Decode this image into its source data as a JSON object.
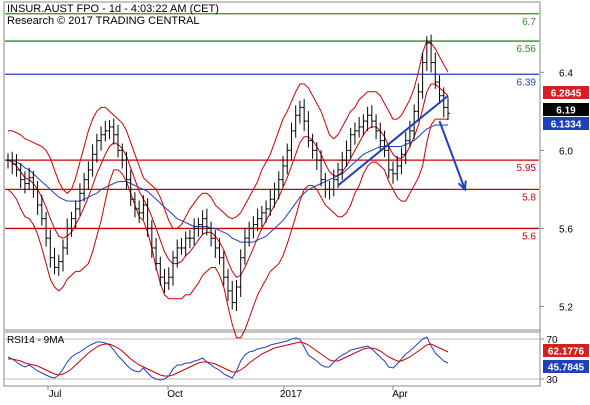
{
  "header": {
    "line1": "INSUR.AUST FPO - 1d - 4:03:22 AM (CET)",
    "line2": "Research © 2017 TRADING CENTRAL"
  },
  "chart_data": [
    {
      "type": "candlestick",
      "title": "",
      "ylim": [
        5.1,
        6.75
      ],
      "y_ticks": [
        "6.4",
        "6.0",
        "5.6",
        "5.2"
      ],
      "x_ticks": [
        "Jul",
        "Oct",
        "2017",
        "Apr"
      ],
      "horizontal_levels": [
        {
          "value": 6.7,
          "label": "6.7",
          "color": "#2e8b2e"
        },
        {
          "value": 6.56,
          "label": "6.56",
          "color": "#2e8b2e"
        },
        {
          "value": 6.39,
          "label": "6.39",
          "color": "#1f3fbf"
        },
        {
          "value": 5.95,
          "label": "5.95",
          "color": "#cc0000"
        },
        {
          "value": 5.8,
          "label": "5.8",
          "color": "#cc0000"
        },
        {
          "value": 5.6,
          "label": "5.6",
          "color": "#cc0000"
        }
      ],
      "value_badges": [
        {
          "value": 6.2845,
          "label": "6.2845",
          "bg": "#d42020"
        },
        {
          "value": 6.19,
          "label": "6.19",
          "bg": "#000000"
        },
        {
          "value": 6.1334,
          "label": "6.1334",
          "bg": "#1f3fbf"
        }
      ],
      "price": [
        5.95,
        5.93,
        5.9,
        5.85,
        5.83,
        5.86,
        5.8,
        5.72,
        5.65,
        5.55,
        5.45,
        5.4,
        5.43,
        5.5,
        5.6,
        5.65,
        5.7,
        5.78,
        5.85,
        5.9,
        5.98,
        6.05,
        6.08,
        6.1,
        6.12,
        6.08,
        6.0,
        5.95,
        5.85,
        5.75,
        5.7,
        5.68,
        5.72,
        5.6,
        5.5,
        5.42,
        5.35,
        5.32,
        5.35,
        5.45,
        5.5,
        5.5,
        5.55,
        5.55,
        5.6,
        5.62,
        5.65,
        5.6,
        5.55,
        5.5,
        5.45,
        5.35,
        5.28,
        5.22,
        5.3,
        5.45,
        5.55,
        5.6,
        5.62,
        5.65,
        5.68,
        5.7,
        5.75,
        5.8,
        5.85,
        5.92,
        6.0,
        6.1,
        6.18,
        6.22,
        6.15,
        6.05,
        6.0,
        5.95,
        5.85,
        5.8,
        5.8,
        5.85,
        5.9,
        5.95,
        6.0,
        6.08,
        6.1,
        6.12,
        6.15,
        6.18,
        6.15,
        6.1,
        6.05,
        6.0,
        5.9,
        5.88,
        5.92,
        5.98,
        6.05,
        6.1,
        6.2,
        6.3,
        6.45,
        6.55,
        6.45,
        6.35,
        6.28,
        6.22,
        6.19
      ],
      "series": [
        {
          "name": "",
          "color": "#cc0000",
          "values": [
            5.95,
            5.94,
            5.92,
            5.89,
            5.86,
            5.85,
            5.83,
            5.8,
            5.76,
            5.71,
            5.65,
            5.6,
            5.56,
            5.55,
            5.56,
            5.58,
            5.62,
            5.66,
            5.71,
            5.76,
            5.82,
            5.88,
            5.93,
            5.98,
            6.02,
            6.04,
            6.03,
            6.01,
            5.97,
            5.91,
            5.85,
            5.79,
            5.75,
            5.71,
            5.66,
            5.6,
            5.54,
            5.48,
            5.44,
            5.42,
            5.42,
            5.43,
            5.46,
            5.48,
            5.51,
            5.54,
            5.57,
            5.58,
            5.58,
            5.56,
            5.53,
            5.49,
            5.43,
            5.38,
            5.35,
            5.36,
            5.4,
            5.45,
            5.5,
            5.55,
            5.6,
            5.64,
            5.68,
            5.72,
            5.76,
            5.81,
            5.86,
            5.92,
            5.98,
            6.04,
            6.07,
            6.07,
            6.05,
            6.02,
            5.98,
            5.93,
            5.89,
            5.87,
            5.87,
            5.89,
            5.92,
            5.96,
            6.0,
            6.04,
            6.08,
            6.11,
            6.12,
            6.12,
            6.1,
            6.07,
            6.02,
            5.98,
            5.96,
            5.96,
            5.98,
            6.02,
            6.07,
            6.13,
            6.21,
            6.3,
            6.34,
            6.34,
            6.32,
            6.3,
            6.28
          ]
        },
        {
          "name": "",
          "color": "#1f3fbf",
          "values": [
            5.95,
            5.95,
            5.94,
            5.93,
            5.91,
            5.9,
            5.88,
            5.86,
            5.84,
            5.82,
            5.8,
            5.78,
            5.76,
            5.75,
            5.74,
            5.74,
            5.74,
            5.74,
            5.75,
            5.76,
            5.77,
            5.78,
            5.8,
            5.81,
            5.82,
            5.83,
            5.84,
            5.84,
            5.84,
            5.83,
            5.82,
            5.81,
            5.8,
            5.79,
            5.77,
            5.75,
            5.73,
            5.71,
            5.69,
            5.67,
            5.65,
            5.64,
            5.63,
            5.62,
            5.61,
            5.61,
            5.61,
            5.61,
            5.6,
            5.6,
            5.59,
            5.58,
            5.57,
            5.55,
            5.54,
            5.53,
            5.53,
            5.53,
            5.53,
            5.54,
            5.55,
            5.56,
            5.58,
            5.6,
            5.62,
            5.64,
            5.67,
            5.7,
            5.73,
            5.76,
            5.78,
            5.8,
            5.81,
            5.82,
            5.83,
            5.84,
            5.85,
            5.86,
            5.87,
            5.88,
            5.9,
            5.92,
            5.94,
            5.96,
            5.98,
            5.99,
            6.0,
            6.01,
            6.02,
            6.02,
            6.02,
            6.02,
            6.02,
            6.02,
            6.03,
            6.04,
            6.05,
            6.07,
            6.09,
            6.11,
            6.12,
            6.13,
            6.13,
            6.13,
            6.13
          ]
        },
        {
          "name": "",
          "color": "#cc0000",
          "values": [
            6.1,
            6.1,
            6.09,
            6.08,
            6.06,
            6.05,
            6.04,
            6.03,
            6.02,
            6.0,
            5.96,
            5.9,
            5.84,
            5.8,
            5.78,
            5.8,
            5.86,
            5.94,
            6.02,
            6.1,
            6.16,
            6.2,
            6.22,
            6.22,
            6.2,
            6.18,
            6.16,
            6.14,
            6.1,
            6.04,
            5.98,
            5.92,
            5.86,
            5.84,
            5.82,
            5.8,
            5.76,
            5.7,
            5.64,
            5.6,
            5.6,
            5.62,
            5.66,
            5.7,
            5.73,
            5.76,
            5.78,
            5.78,
            5.76,
            5.72,
            5.7,
            5.68,
            5.66,
            5.65,
            5.66,
            5.68,
            5.72,
            5.76,
            5.8,
            5.84,
            5.9,
            5.94,
            5.98,
            6.04,
            6.1,
            6.16,
            6.2,
            6.25,
            6.3,
            6.34,
            6.34,
            6.32,
            6.28,
            6.24,
            6.2,
            6.14,
            6.08,
            6.06,
            6.08,
            6.12,
            6.16,
            6.2,
            6.22,
            6.26,
            6.28,
            6.3,
            6.3,
            6.3,
            6.28,
            6.24,
            6.2,
            6.16,
            6.16,
            6.18,
            6.22,
            6.26,
            6.32,
            6.4,
            6.5,
            6.56,
            6.55,
            6.52,
            6.48,
            6.44,
            6.4
          ]
        },
        {
          "name": "",
          "color": "#cc0000",
          "values": [
            5.8,
            5.78,
            5.75,
            5.7,
            5.66,
            5.65,
            5.62,
            5.57,
            5.5,
            5.42,
            5.34,
            5.3,
            5.28,
            5.3,
            5.34,
            5.36,
            5.38,
            5.38,
            5.4,
            5.42,
            5.48,
            5.56,
            5.64,
            5.74,
            5.84,
            5.9,
            5.9,
            5.88,
            5.84,
            5.78,
            5.72,
            5.66,
            5.64,
            5.58,
            5.5,
            5.4,
            5.32,
            5.26,
            5.24,
            5.24,
            5.24,
            5.24,
            5.26,
            5.26,
            5.29,
            5.32,
            5.36,
            5.38,
            5.4,
            5.4,
            5.36,
            5.3,
            5.2,
            5.11,
            5.04,
            5.04,
            5.08,
            5.14,
            5.2,
            5.26,
            5.3,
            5.34,
            5.38,
            5.4,
            5.42,
            5.46,
            5.52,
            5.59,
            5.66,
            5.74,
            5.8,
            5.82,
            5.82,
            5.8,
            5.76,
            5.72,
            5.7,
            5.68,
            5.66,
            5.66,
            5.68,
            5.72,
            5.78,
            5.82,
            5.88,
            5.92,
            5.94,
            5.94,
            5.92,
            5.9,
            5.84,
            5.8,
            5.76,
            5.74,
            5.74,
            5.78,
            5.82,
            5.86,
            5.92,
            6.04,
            6.13,
            6.16,
            6.16,
            6.16,
            6.16
          ]
        }
      ],
      "trendline": {
        "from": {
          "i": 78,
          "v": 5.82
        },
        "to": {
          "i": 104,
          "v": 6.28
        },
        "color": "#1f3fbf"
      },
      "arrow": {
        "from": {
          "i": 102,
          "v": 6.15
        },
        "to": {
          "i": 108,
          "v": 5.8
        },
        "color": "#1f3fbf"
      }
    },
    {
      "type": "line",
      "title": "RSI14 - 9MA",
      "ylim": [
        25,
        75
      ],
      "y_ticks": [
        "70",
        "30"
      ],
      "value_badges": [
        {
          "value": 62.1776,
          "label": "62.1776",
          "bg": "#d42020"
        },
        {
          "value": 45.7845,
          "label": "45.7845",
          "bg": "#1f3fbf"
        }
      ],
      "series": [
        {
          "name": "",
          "color": "#1f3fbf",
          "values": [
            52,
            50,
            47,
            44,
            42,
            44,
            41,
            38,
            36,
            34,
            32,
            31,
            34,
            40,
            47,
            52,
            55,
            57,
            60,
            63,
            65,
            67,
            67,
            66,
            64,
            59,
            53,
            49,
            44,
            40,
            38,
            37,
            41,
            36,
            32,
            30,
            29,
            30,
            33,
            40,
            44,
            44,
            46,
            46,
            48,
            49,
            51,
            47,
            44,
            41,
            39,
            35,
            33,
            31,
            38,
            48,
            54,
            57,
            58,
            60,
            61,
            62,
            64,
            65,
            66,
            67,
            68,
            70,
            71,
            70,
            62,
            54,
            51,
            48,
            44,
            42,
            42,
            47,
            51,
            54,
            56,
            59,
            60,
            61,
            62,
            63,
            60,
            56,
            52,
            48,
            42,
            41,
            45,
            50,
            55,
            58,
            62,
            66,
            70,
            72,
            63,
            56,
            52,
            48,
            46
          ]
        },
        {
          "name": "",
          "color": "#cc0000",
          "values": [
            50,
            50,
            49,
            48,
            46,
            45,
            44,
            43,
            41,
            39,
            37,
            35,
            34,
            35,
            37,
            40,
            44,
            48,
            52,
            56,
            59,
            62,
            64,
            65,
            65,
            63,
            61,
            58,
            54,
            50,
            47,
            44,
            42,
            40,
            38,
            36,
            34,
            33,
            33,
            34,
            36,
            38,
            40,
            42,
            44,
            46,
            47,
            47,
            46,
            45,
            43,
            41,
            39,
            37,
            37,
            39,
            42,
            46,
            49,
            52,
            55,
            57,
            59,
            61,
            62,
            63,
            64,
            65,
            66,
            67,
            66,
            64,
            61,
            58,
            55,
            52,
            49,
            48,
            48,
            50,
            52,
            54,
            56,
            58,
            60,
            61,
            61,
            60,
            58,
            55,
            52,
            50,
            48,
            48,
            50,
            52,
            55,
            58,
            61,
            64,
            65,
            63,
            61,
            59,
            57
          ]
        }
      ],
      "x_ticks": [
        "Jul",
        "Oct",
        "2017",
        "Apr"
      ]
    }
  ]
}
